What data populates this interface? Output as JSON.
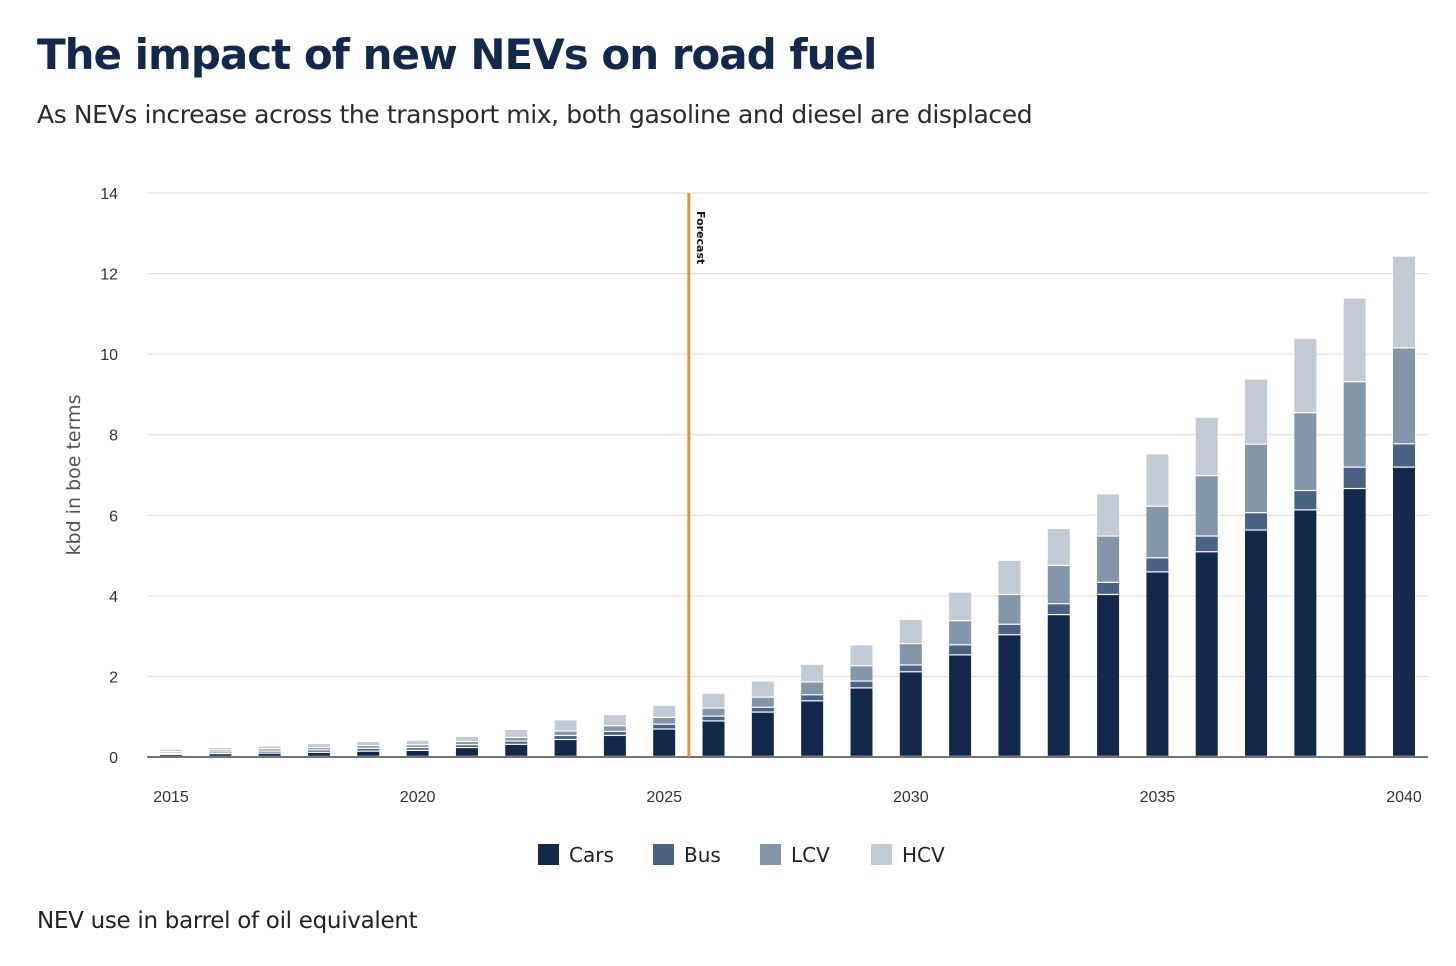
{
  "title": "The impact of new NEVs on road fuel",
  "subtitle": "As NEVs increase across the transport mix, both gasoline and diesel are displaced",
  "footnote": "NEV use in barrel of oil equivalent",
  "chart_data": {
    "type": "bar",
    "stacked": true,
    "title": "The impact of new NEVs on road fuel",
    "xlabel": "",
    "ylabel": "kbd in boe terms",
    "ylim": [
      0,
      14
    ],
    "yticks": [
      0,
      2,
      4,
      6,
      8,
      10,
      12,
      14
    ],
    "xtick_labels": [
      "2015",
      "2020",
      "2025",
      "2030",
      "2035",
      "2040"
    ],
    "grid": true,
    "legend_position": "bottom",
    "categories": [
      2015,
      2016,
      2017,
      2018,
      2019,
      2020,
      2021,
      2022,
      2023,
      2024,
      2025,
      2026,
      2027,
      2028,
      2029,
      2030,
      2031,
      2032,
      2033,
      2034,
      2035,
      2036,
      2037,
      2038,
      2039,
      2040
    ],
    "series": [
      {
        "name": "Cars",
        "color": "#13294b",
        "values": [
          0.05,
          0.07,
          0.08,
          0.1,
          0.13,
          0.15,
          0.22,
          0.3,
          0.42,
          0.52,
          0.68,
          0.88,
          1.1,
          1.38,
          1.7,
          2.1,
          2.52,
          3.02,
          3.52,
          4.02,
          4.58,
          5.08,
          5.62,
          6.12,
          6.65,
          7.18
        ]
      },
      {
        "name": "Bus",
        "color": "#4a6283",
        "values": [
          0.03,
          0.04,
          0.05,
          0.06,
          0.07,
          0.07,
          0.07,
          0.08,
          0.1,
          0.1,
          0.12,
          0.12,
          0.12,
          0.15,
          0.17,
          0.17,
          0.25,
          0.26,
          0.27,
          0.3,
          0.35,
          0.39,
          0.43,
          0.48,
          0.53,
          0.58
        ]
      },
      {
        "name": "LCV",
        "color": "#8496aa",
        "values": [
          0.04,
          0.05,
          0.06,
          0.06,
          0.07,
          0.07,
          0.08,
          0.09,
          0.11,
          0.14,
          0.17,
          0.2,
          0.25,
          0.32,
          0.38,
          0.53,
          0.6,
          0.74,
          0.95,
          1.15,
          1.28,
          1.5,
          1.7,
          1.93,
          2.12,
          2.38
        ]
      },
      {
        "name": "HCV",
        "color": "#c2cbd5",
        "values": [
          0.06,
          0.06,
          0.07,
          0.1,
          0.1,
          0.11,
          0.13,
          0.2,
          0.28,
          0.28,
          0.3,
          0.37,
          0.4,
          0.44,
          0.52,
          0.6,
          0.71,
          0.85,
          0.92,
          1.05,
          1.3,
          1.45,
          1.62,
          1.85,
          2.08,
          2.28
        ]
      }
    ],
    "annotations": [
      {
        "text": "Forecast",
        "x": 2025.5,
        "color": "#e0953a"
      }
    ]
  }
}
